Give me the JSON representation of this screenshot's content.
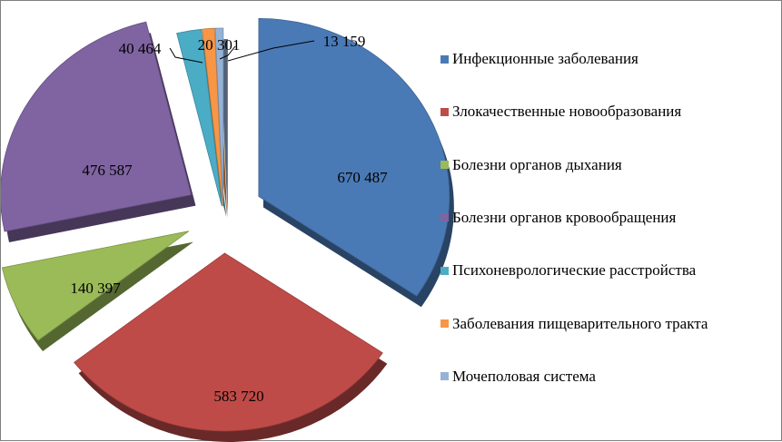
{
  "chart_data": {
    "type": "pie",
    "style": "3d-exploded",
    "legend_position": "right",
    "categories": [
      "Инфекционные заболевания",
      "Злокачественные новообразования",
      "Болезни органов дыхания",
      "Болезни органов кровообращения",
      "Психоневрологические расстройства",
      "Заболевания пищеварительного тракта",
      "Мочеполовая система"
    ],
    "values": [
      670487,
      583720,
      140397,
      476587,
      40464,
      20301,
      13159
    ],
    "value_labels": [
      "670 487",
      "583 720",
      "140 397",
      "476 587",
      "40 464",
      "20 301",
      "13 159"
    ],
    "colors": [
      "#4a7ab5",
      "#bf4b48",
      "#9bbb59",
      "#8064a2",
      "#4bacc6",
      "#f79646",
      "#95b3d7"
    ]
  }
}
